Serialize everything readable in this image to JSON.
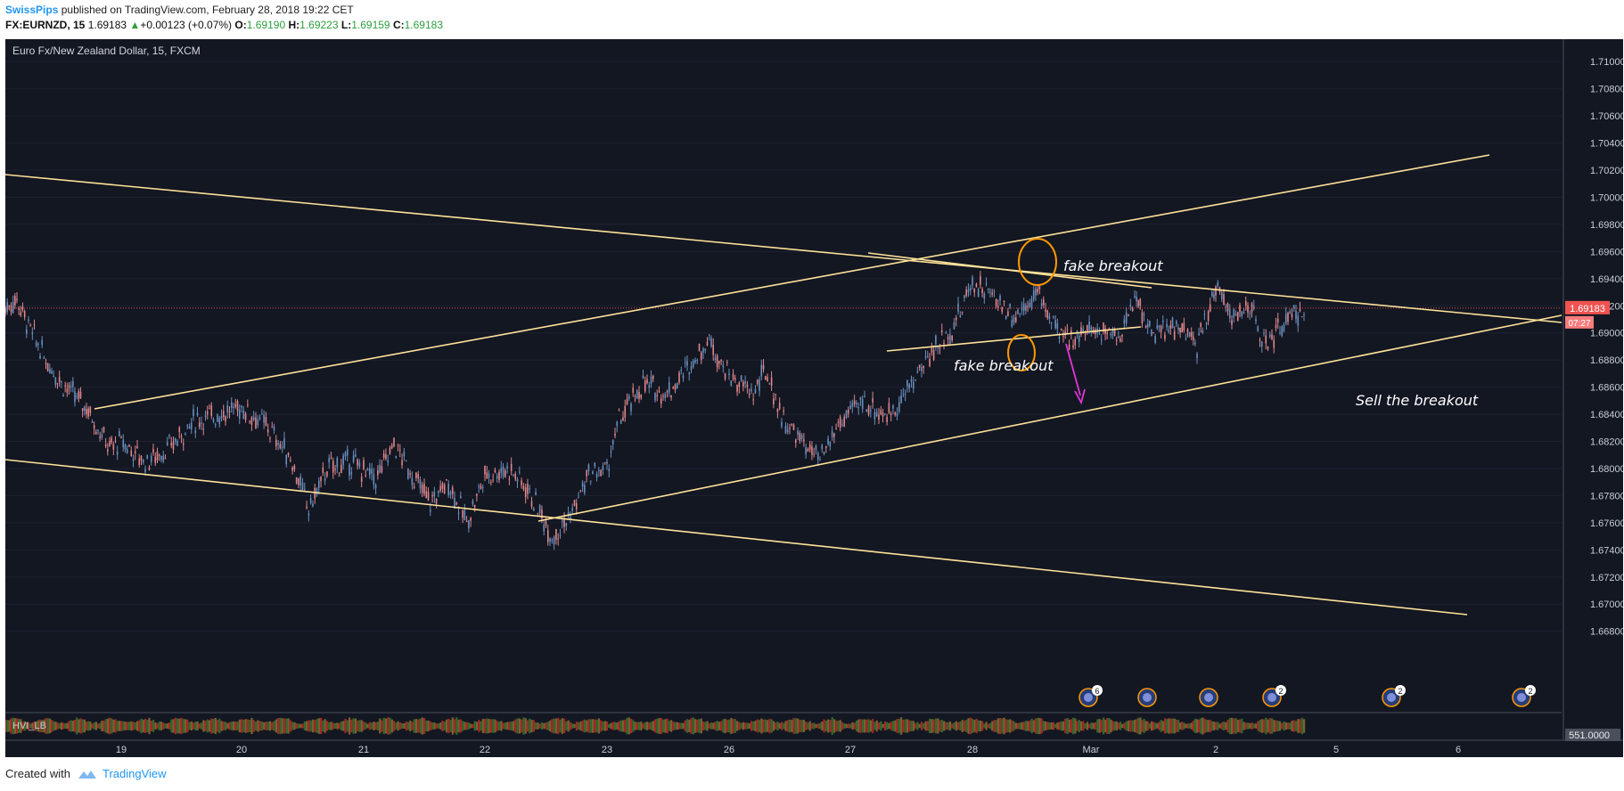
{
  "header": {
    "author": "SwissPips",
    "published_text": "published on TradingView.com, February 28, 2018 19:22 CET",
    "symbol": "FX:EURNZD, 15",
    "last": "1.69183",
    "change": "+0.00123 (+0.07%)",
    "open_label": "O:",
    "open": "1.69190",
    "high_label": "H:",
    "high": "1.69223",
    "low_label": "L:",
    "low": "1.69159",
    "close_label": "C:",
    "close": "1.69183"
  },
  "chart_data": {
    "type": "candlestick",
    "title": "Euro Fx/New Zealand Dollar, 15, FXCM",
    "x_ticks": [
      "19",
      "20",
      "21",
      "22",
      "23",
      "26",
      "27",
      "28",
      "Mar",
      "2",
      "5",
      "6"
    ],
    "y_ticks": [
      "1.71000",
      "1.70800",
      "1.70600",
      "1.70400",
      "1.70200",
      "1.70000",
      "1.69800",
      "1.69600",
      "1.69400",
      "1.69200",
      "1.69000",
      "1.68800",
      "1.68600",
      "1.68400",
      "1.68200",
      "1.68000",
      "1.67800",
      "1.67600",
      "1.67400",
      "1.67200",
      "1.67000",
      "1.66800"
    ],
    "ylim": [
      1.668,
      1.711
    ],
    "current_price": 1.69183,
    "current_price_label": "1.69183",
    "countdown_label": "07:27",
    "price_path": [
      [
        "18.0",
        1.6918
      ],
      [
        "18.1",
        1.6925
      ],
      [
        "18.2",
        1.6905
      ],
      [
        "18.35",
        1.688
      ],
      [
        "18.5",
        1.6862
      ],
      [
        "18.7",
        1.6845
      ],
      [
        "18.9",
        1.6815
      ],
      [
        "19.0",
        1.682
      ],
      [
        "19.2",
        1.6805
      ],
      [
        "19.4",
        1.6815
      ],
      [
        "19.6",
        1.6835
      ],
      [
        "19.8",
        1.684
      ],
      [
        "20.0",
        1.6845
      ],
      [
        "20.2",
        1.6832
      ],
      [
        "20.4",
        1.6808
      ],
      [
        "20.55",
        1.677
      ],
      [
        "20.7",
        1.68
      ],
      [
        "20.9",
        1.6805
      ],
      [
        "21.1",
        1.6792
      ],
      [
        "21.25",
        1.6818
      ],
      [
        "21.4",
        1.6795
      ],
      [
        "21.55",
        1.6775
      ],
      [
        "21.7",
        1.679
      ],
      [
        "21.85",
        1.676
      ],
      [
        "22.0",
        1.6795
      ],
      [
        "22.2",
        1.68
      ],
      [
        "22.35",
        1.6785
      ],
      [
        "22.55",
        1.675
      ],
      [
        "22.7",
        1.6765
      ],
      [
        "22.85",
        1.6795
      ],
      [
        "23.0",
        1.68
      ],
      [
        "23.1",
        1.6835
      ],
      [
        "23.3",
        1.6862
      ],
      [
        "23.5",
        1.6855
      ],
      [
        "23.7",
        1.6878
      ],
      [
        "23.85",
        1.6895
      ],
      [
        "24.0",
        1.6868
      ],
      [
        "24.2",
        1.6855
      ],
      [
        "24.3",
        1.6872
      ],
      [
        "24.45",
        1.6835
      ],
      [
        "24.6",
        1.682
      ],
      [
        "24.75",
        1.6805
      ],
      [
        "24.9",
        1.6832
      ],
      [
        "25.1",
        1.685
      ],
      [
        "25.3",
        1.6838
      ],
      [
        "25.45",
        1.6855
      ],
      [
        "25.55",
        1.687
      ],
      [
        "25.7",
        1.689
      ],
      [
        "25.85",
        1.6905
      ],
      [
        "26.0",
        1.6938
      ],
      [
        "26.2",
        1.6925
      ],
      [
        "26.35",
        1.6912
      ],
      [
        "26.55",
        1.693
      ],
      [
        "26.75",
        1.6895
      ],
      [
        "26.9",
        1.69
      ],
      [
        "27.1",
        1.6903
      ],
      [
        "27.25",
        1.6898
      ],
      [
        "27.35",
        1.6928
      ],
      [
        "27.5",
        1.6898
      ],
      [
        "27.7",
        1.6905
      ],
      [
        "27.85",
        1.689
      ],
      [
        "28.0",
        1.6935
      ],
      [
        "28.15",
        1.6912
      ],
      [
        "28.3",
        1.6918
      ],
      [
        "28.4",
        1.689
      ],
      [
        "28.55",
        1.6905
      ],
      [
        "28.75",
        1.6918
      ]
    ],
    "volume_indicator": {
      "name": "HVI_LB",
      "value_label": "551.0000"
    },
    "annotations": [
      {
        "text": "fake breakout",
        "kind": "label"
      },
      {
        "text": "fake breakout",
        "kind": "label"
      },
      {
        "text": "Sell the breakout",
        "kind": "label"
      }
    ],
    "event_badges": [
      "6",
      "2",
      "2",
      "2"
    ],
    "colors": {
      "background": "#131722",
      "up_candle": "#6a8fbd",
      "down_candle": "#e0868a",
      "trendline": "#ffe29a",
      "ellipse": "#ff9800",
      "arrow": "#e535d8",
      "price_label_bg": "#f05350",
      "axis_text": "#c8ccd4"
    }
  },
  "footer": {
    "created_with": "Created with",
    "brand": "TradingView"
  }
}
